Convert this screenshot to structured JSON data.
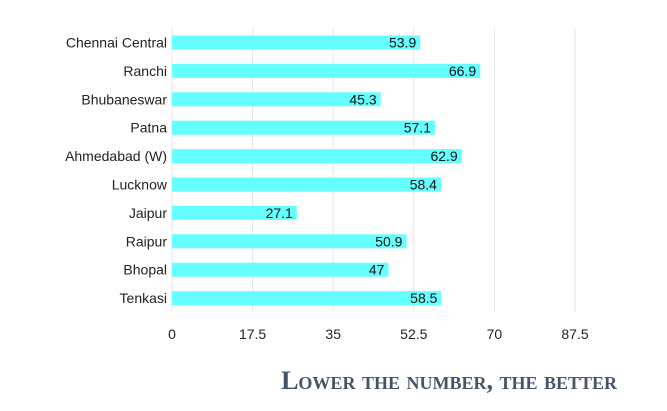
{
  "chart_data": {
    "type": "bar",
    "orientation": "horizontal",
    "categories": [
      "Chennai Central",
      "Ranchi",
      "Bhubaneswar",
      "Patna",
      "Ahmedabad (W)",
      "Lucknow",
      "Jaipur",
      "Raipur",
      "Bhopal",
      "Tenkasi"
    ],
    "values": [
      53.9,
      66.9,
      45.3,
      57.1,
      62.9,
      58.4,
      27.1,
      50.9,
      47,
      58.5
    ],
    "value_labels": [
      "53.9",
      "66.9",
      "45.3",
      "57.1",
      "62.9",
      "58.4",
      "27.1",
      "50.9",
      "47",
      "58.5"
    ],
    "xticks": [
      "0",
      "17.5",
      "35",
      "52.5",
      "70",
      "87.5"
    ],
    "xlim": [
      0,
      87.5
    ],
    "grid": true,
    "bar_color": "#66ffff"
  },
  "caption": "Lower the number, the better"
}
